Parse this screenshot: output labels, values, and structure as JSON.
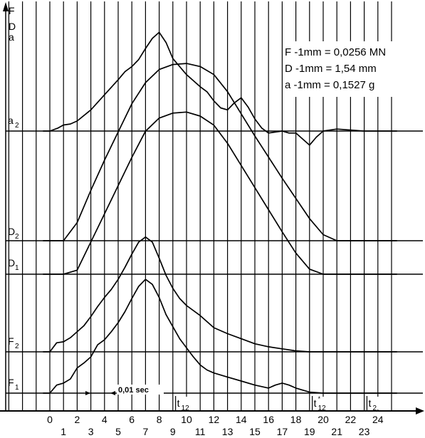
{
  "chart_data": {
    "type": "line",
    "title": "",
    "axis_label": "F D a",
    "axis_label_chars": [
      "F",
      "D",
      "a"
    ],
    "x_ticks_top": [
      "0",
      "2",
      "4",
      "6",
      "8",
      "10",
      "12",
      "14",
      "16",
      "18",
      "20",
      "22",
      "24"
    ],
    "x_ticks_bottom": [
      "1",
      "3",
      "5",
      "7",
      "9",
      "11",
      "13",
      "15",
      "17",
      "19",
      "21",
      "23"
    ],
    "x_range": [
      -3.4,
      25.6
    ],
    "baseline_labels": [
      {
        "key": "a2",
        "base": "a",
        "sub": "2"
      },
      {
        "key": "D2",
        "base": "D",
        "sub": "2"
      },
      {
        "key": "D1",
        "base": "D",
        "sub": "1"
      },
      {
        "key": "F2",
        "base": "F",
        "sub": "2"
      },
      {
        "key": "F1",
        "base": "F",
        "sub": "1"
      }
    ],
    "scale_legend": [
      "F -1mm = 0,0256 MN",
      "D -1mm = 1,54 mm",
      "a -1mm = 0,1527 g"
    ],
    "annotations": {
      "time_interval": "0,01 sec",
      "t12": {
        "base": "t",
        "sub": "12",
        "x": 9.2
      },
      "t12_star": {
        "base": "t",
        "sup": "*",
        "sub": "12",
        "x": 19.2
      },
      "t2": {
        "base": "t",
        "sub": "2",
        "x": 23.2
      }
    },
    "series": [
      {
        "name": "a2",
        "unit": "mm",
        "x": [
          -0.5,
          0,
          0.6,
          1,
          1.5,
          2,
          3,
          4,
          5,
          5.5,
          6,
          6.5,
          7,
          7.5,
          8,
          8.5,
          9,
          10,
          11,
          11.5,
          12,
          12.5,
          13,
          13.5,
          14,
          14.5,
          15,
          15.5,
          16,
          16.5,
          17,
          17.5,
          18,
          18.5,
          19,
          19.5,
          20,
          21,
          22,
          23,
          24,
          25.4
        ],
        "values": [
          0,
          0,
          3,
          6,
          7,
          10,
          21,
          36,
          51,
          59,
          64,
          71,
          82,
          92,
          98,
          88,
          72,
          56,
          44,
          39,
          30,
          23,
          21,
          28,
          33,
          24,
          12,
          3,
          -2,
          -1,
          0,
          -2,
          -2,
          -8,
          -14,
          -6,
          0,
          2,
          1,
          0,
          0,
          0
        ]
      },
      {
        "name": "D2",
        "unit": "mm",
        "x": [
          -0.5,
          1,
          2,
          3,
          4,
          5,
          6,
          7,
          8,
          9,
          10,
          11,
          12,
          13,
          14,
          15,
          16,
          17,
          18,
          19,
          20,
          21,
          22,
          25.4
        ],
        "values": [
          0,
          0,
          18,
          50,
          80,
          108,
          136,
          157,
          170,
          175,
          176,
          173,
          165,
          148,
          126,
          104,
          83,
          62,
          42,
          22,
          6,
          0,
          0,
          0
        ]
      },
      {
        "name": "D1",
        "unit": "mm",
        "x": [
          -0.5,
          1,
          2,
          3,
          4,
          5,
          6,
          7,
          8,
          9,
          10,
          11,
          12,
          13,
          14,
          15,
          16,
          17,
          18,
          19,
          20,
          21,
          22,
          25.4
        ],
        "values": [
          0,
          0,
          4,
          32,
          60,
          88,
          116,
          142,
          155,
          160,
          161,
          157,
          148,
          130,
          108,
          86,
          64,
          42,
          21,
          5,
          0,
          0,
          0,
          0
        ]
      },
      {
        "name": "F2",
        "unit": "mm",
        "x": [
          -0.5,
          0,
          0.5,
          1,
          1.5,
          2,
          2.5,
          3,
          3.5,
          4,
          4.5,
          5,
          5.5,
          6,
          6.5,
          7,
          7.5,
          8,
          8.5,
          9,
          9.5,
          10,
          11,
          12,
          13,
          14,
          15,
          16,
          17,
          18,
          19,
          20,
          21,
          25.4
        ],
        "values": [
          0,
          0,
          9,
          10,
          14,
          20,
          26,
          35,
          45,
          54,
          62,
          72,
          84,
          97,
          109,
          114,
          109,
          93,
          76,
          63,
          53,
          46,
          36,
          24,
          18,
          13,
          8,
          5,
          3,
          1,
          0,
          0,
          0,
          0
        ]
      },
      {
        "name": "F1",
        "unit": "mm",
        "x": [
          -0.5,
          0,
          0.5,
          1,
          1.5,
          2,
          2.5,
          3,
          3.5,
          4,
          4.5,
          5,
          5.5,
          6,
          6.5,
          7,
          7.5,
          8,
          8.5,
          9,
          9.5,
          10,
          10.5,
          11,
          11.5,
          12,
          13,
          14,
          15,
          16,
          16.5,
          17,
          17.5,
          18,
          19,
          20,
          21,
          25.4
        ],
        "values": [
          0,
          0,
          8,
          10,
          14,
          25,
          30,
          36,
          48,
          53,
          61,
          70,
          81,
          94,
          106,
          113,
          108,
          95,
          78,
          66,
          54,
          45,
          36,
          28,
          23,
          20,
          16,
          12,
          8,
          5,
          8,
          10,
          8,
          5,
          1,
          0,
          0,
          0
        ]
      }
    ]
  }
}
